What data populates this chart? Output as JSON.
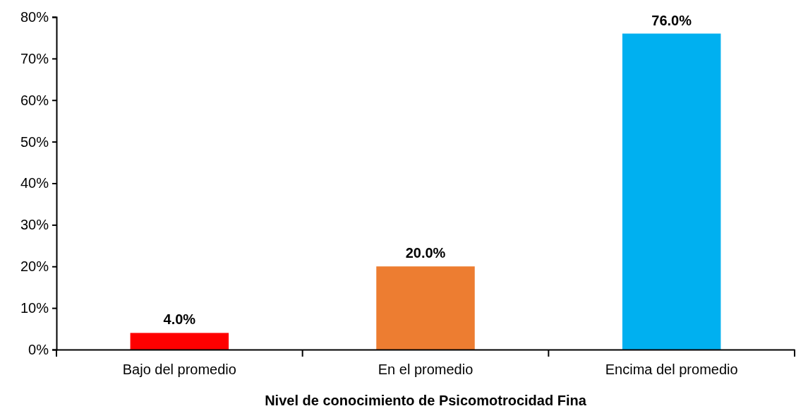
{
  "chart_data": {
    "type": "bar",
    "xlabel": "Nivel de conocimiento de Psicomotrocidad Fina",
    "categories": [
      "Bajo del promedio",
      "En el promedio",
      "Encima del promedio"
    ],
    "values": [
      4,
      20,
      76
    ],
    "colors": [
      "#ff0000",
      "#ed7d31",
      "#00b0f0"
    ],
    "value_labels": [
      "4.0%",
      "20.0%",
      "76.0%"
    ],
    "ylim": [
      0,
      80
    ],
    "yticks": [
      {
        "value": 0,
        "label": "0%"
      },
      {
        "value": 10,
        "label": "10%"
      },
      {
        "value": 20,
        "label": "20%"
      },
      {
        "value": 30,
        "label": "30%"
      },
      {
        "value": 40,
        "label": "40%"
      },
      {
        "value": 50,
        "label": "50%"
      },
      {
        "value": 60,
        "label": "60%"
      },
      {
        "value": 70,
        "label": "70%"
      },
      {
        "value": 80,
        "label": "80%"
      }
    ],
    "grid": false
  }
}
